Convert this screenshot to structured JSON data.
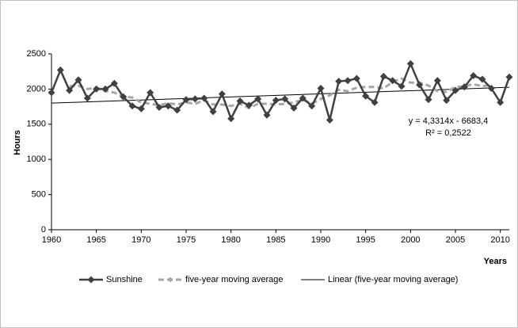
{
  "chart_data": {
    "type": "line",
    "x": [
      1960,
      1961,
      1962,
      1963,
      1964,
      1965,
      1966,
      1967,
      1968,
      1969,
      1970,
      1971,
      1972,
      1973,
      1974,
      1975,
      1976,
      1977,
      1978,
      1979,
      1980,
      1981,
      1982,
      1983,
      1984,
      1985,
      1986,
      1987,
      1988,
      1989,
      1990,
      1991,
      1992,
      1993,
      1994,
      1995,
      1996,
      1997,
      1998,
      1999,
      2000,
      2001,
      2002,
      2003,
      2004,
      2005,
      2006,
      2007,
      2008,
      2009,
      2010,
      2011
    ],
    "series": [
      {
        "name": "Sunshine",
        "color": "#404040",
        "values": [
          1950,
          2270,
          1980,
          2130,
          1870,
          2000,
          2000,
          2080,
          1890,
          1760,
          1720,
          1950,
          1740,
          1760,
          1700,
          1850,
          1860,
          1870,
          1680,
          1930,
          1580,
          1830,
          1770,
          1860,
          1630,
          1840,
          1860,
          1730,
          1870,
          1760,
          2010,
          1560,
          2110,
          2120,
          2150,
          1900,
          1810,
          2180,
          2120,
          2040,
          2360,
          2060,
          1850,
          2120,
          1840,
          1980,
          2030,
          2190,
          2140,
          2010,
          1810,
          2170
        ]
      },
      {
        "name": "five-year moving average",
        "color": "#a6a6a6",
        "values": [
          null,
          null,
          2040,
          2050,
          2000,
          2020,
          1970,
          1950,
          1890,
          1880,
          1810,
          1790,
          1770,
          1800,
          1780,
          1810,
          1790,
          1840,
          1780,
          1780,
          1760,
          1790,
          1730,
          1790,
          1790,
          1780,
          1790,
          1810,
          1850,
          1790,
          1860,
          1910,
          1990,
          1970,
          2020,
          2030,
          2030,
          2010,
          2100,
          2150,
          2090,
          2090,
          2050,
          1970,
          1960,
          2030,
          2040,
          2070,
          2040,
          2060,
          null,
          null
        ]
      }
    ],
    "trendline": {
      "name": "Linear (five-year moving average)",
      "color": "#000000",
      "x": [
        1960,
        2011
      ],
      "values": [
        1800,
        2025
      ]
    },
    "annotation": [
      "y = 4,3314x - 6683,4",
      "R² = 0,2522"
    ],
    "x_label": "Years",
    "y_label": "Hours",
    "xlim": [
      1960,
      2011
    ],
    "xticks": [
      1960,
      1965,
      1970,
      1975,
      1980,
      1985,
      1990,
      1995,
      2000,
      2005,
      2010
    ],
    "ylim": [
      0,
      2500
    ],
    "yticks": [
      0,
      500,
      1000,
      1500,
      2000,
      2500
    ],
    "grid": false,
    "legend": "bottom"
  }
}
